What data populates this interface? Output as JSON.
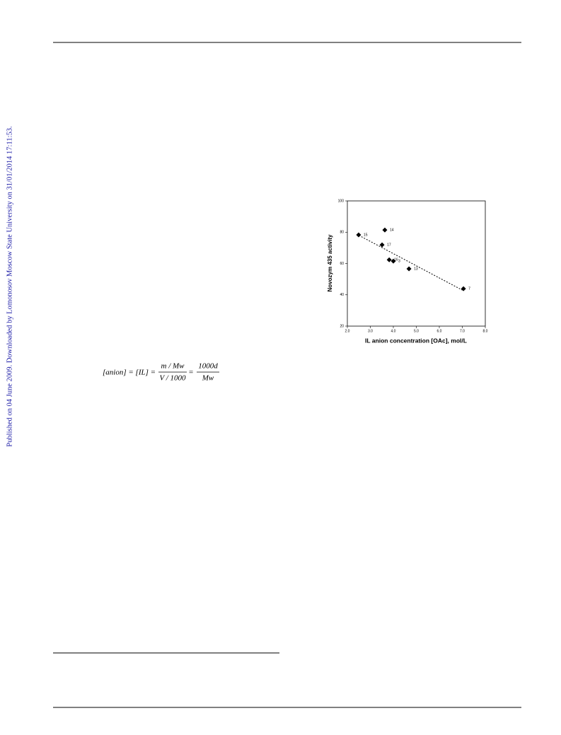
{
  "side_note": "Published on 04 June 2009. Downloaded by Lomonosov Moscow State University on 31/01/2014 17:11:53.",
  "equation": {
    "left": "[anion] = [IL] =",
    "fraction1": {
      "numerator": "m / Mw",
      "denominator": "V / 1000"
    },
    "equals": "=",
    "fraction2": {
      "numerator": "1000d",
      "denominator": "Mw"
    }
  },
  "chart_data": {
    "type": "scatter",
    "x_label": "IL anion concentration [OAc], mol/L",
    "y_label": "Novozym 435 activity",
    "x": [
      2.49,
      3.63,
      3.51,
      3.82,
      4.0,
      4.68,
      7.05
    ],
    "y": [
      78.3,
      81.4,
      71.9,
      62.4,
      61.5,
      56.6,
      43.9
    ],
    "point_labels": [
      "15",
      "14",
      "17",
      "16",
      "3",
      "13",
      "7"
    ],
    "color": "#000000",
    "trendline": {
      "x": [
        2.5,
        7.0
      ],
      "y": [
        78,
        43
      ]
    },
    "xlim": [
      2,
      8
    ],
    "xticks": [
      {
        "value": 2,
        "label": "2.0"
      },
      {
        "value": 3,
        "label": "3.0"
      },
      {
        "value": 4,
        "label": "4.0"
      },
      {
        "value": 5,
        "label": "5.0"
      },
      {
        "value": 6,
        "label": "6.0"
      },
      {
        "value": 7,
        "label": "7.0"
      },
      {
        "value": 8,
        "label": "8.0"
      }
    ],
    "ylim": [
      20,
      100
    ],
    "yticks": [
      20,
      40,
      60,
      80,
      100
    ]
  }
}
